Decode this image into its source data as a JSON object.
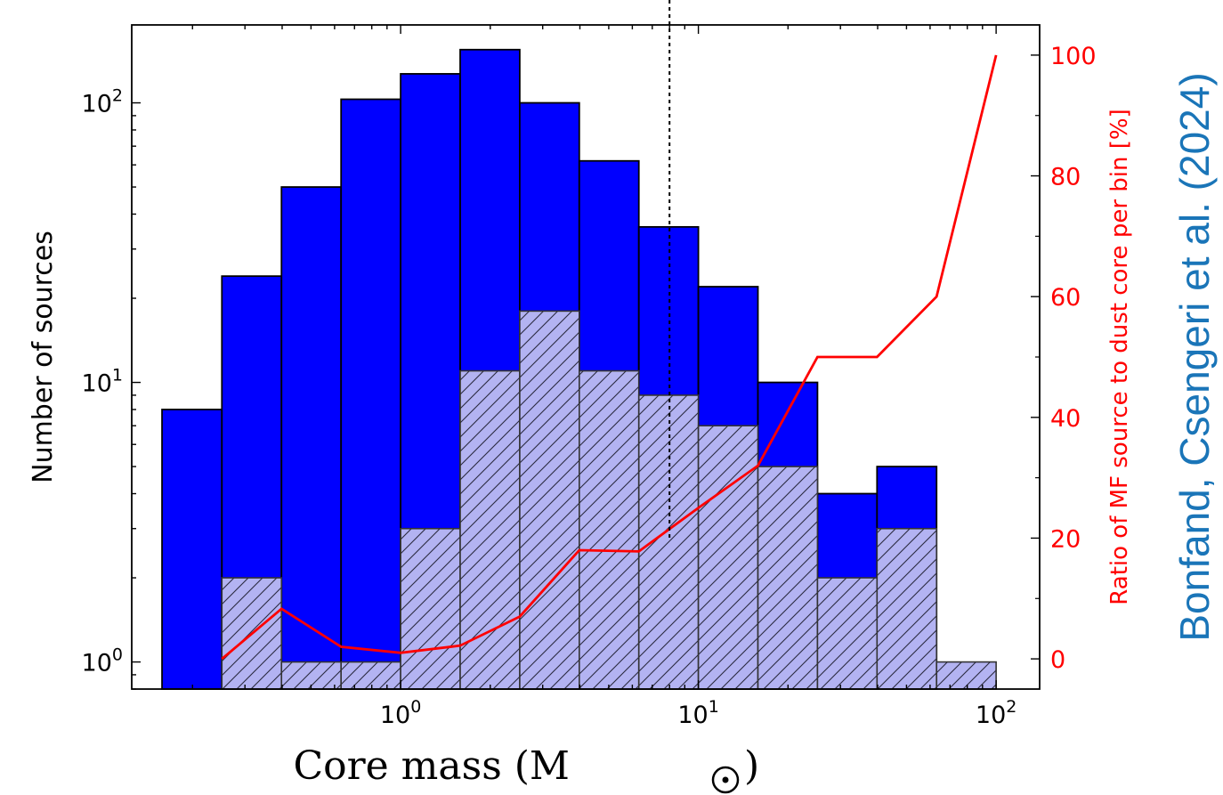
{
  "chart_data": {
    "type": "bar",
    "x_scale": "log",
    "y_scale": "log",
    "xlim": [
      0.125,
      140
    ],
    "ylim": [
      0.8,
      190
    ],
    "y2lim": [
      -5,
      105
    ],
    "bin_edges": [
      0.158,
      0.251,
      0.398,
      0.631,
      1.0,
      1.585,
      2.512,
      3.981,
      6.31,
      10.0,
      15.85,
      25.12,
      39.81,
      63.1,
      100.0
    ],
    "series": [
      {
        "kind": "bar",
        "color": "#0000ff",
        "values": [
          8,
          24,
          50,
          103,
          127,
          155,
          100,
          62,
          36,
          22,
          10,
          4,
          5,
          0
        ]
      },
      {
        "kind": "hatched-bar",
        "color": "#b3b3f2",
        "values": [
          0,
          2,
          1,
          1,
          3,
          11,
          18,
          11,
          9,
          7,
          5,
          2,
          3,
          1
        ]
      },
      {
        "kind": "line",
        "axis": "right",
        "color": "#ff0000",
        "x": [
          0.251,
          0.398,
          0.631,
          1.0,
          1.585,
          2.512,
          3.981,
          6.31,
          10.0,
          15.85,
          25.12,
          39.81,
          63.1,
          100.0
        ],
        "values": [
          0,
          8.3,
          2,
          1,
          2.2,
          7,
          18,
          17.8,
          25,
          32,
          50,
          50,
          60,
          100
        ]
      }
    ],
    "vline_x": 8.0,
    "x_ticks": [
      {
        "value": 1,
        "base": "10",
        "exp": "0"
      },
      {
        "value": 10,
        "base": "10",
        "exp": "1"
      },
      {
        "value": 100,
        "base": "10",
        "exp": "2"
      }
    ],
    "y_ticks": [
      {
        "value": 1,
        "base": "10",
        "exp": "0"
      },
      {
        "value": 10,
        "base": "10",
        "exp": "1"
      },
      {
        "value": 100,
        "base": "10",
        "exp": "2"
      }
    ],
    "y2_ticks": [
      "0",
      "20",
      "40",
      "60",
      "80",
      "100"
    ],
    "xlabel": "Core mass (M",
    "ylabel": "Number of sources",
    "y2label": "Ratio of MF source to dust core per bin [%]",
    "credit": "Bonfand, Csengeri et al. (2024)",
    "credit_color": "#1a75b8",
    "grid": false
  }
}
